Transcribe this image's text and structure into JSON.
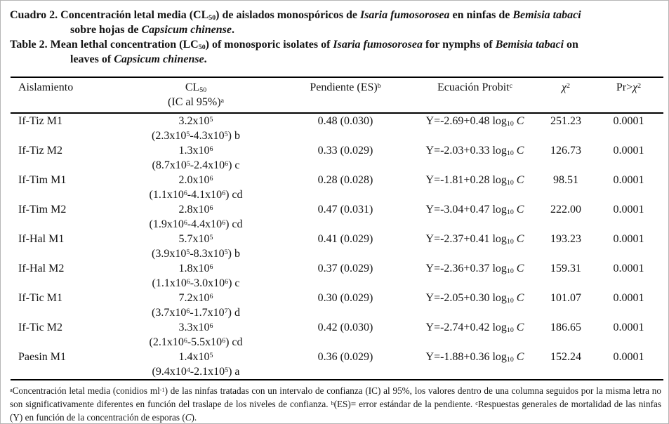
{
  "colors": {
    "text": "#141414",
    "rule": "#000000",
    "page_border": "#b5b5b5",
    "background": "#ffffff"
  },
  "caption": {
    "lines": [
      {
        "indent": false,
        "segments": [
          {
            "t": "Cuadro 2. Concentración letal media (CL"
          },
          {
            "sub": "50"
          },
          {
            "t": ") de aislados monospóricos de "
          },
          {
            "i": "Isaria fumosorosea"
          },
          {
            "t": " en ninfas de "
          },
          {
            "i": "Bemisia tabaci"
          }
        ]
      },
      {
        "indent": true,
        "segments": [
          {
            "t": "sobre hojas de "
          },
          {
            "i": "Capsicum chinense"
          },
          {
            "t": "."
          }
        ]
      },
      {
        "indent": false,
        "segments": [
          {
            "t": "Table 2. Mean lethal concentration (LC"
          },
          {
            "sub": "50"
          },
          {
            "t": ") of monosporic isolates of "
          },
          {
            "i": "Isaria fumosorosea"
          },
          {
            "t": " for nymphs of "
          },
          {
            "i": "Bemisia tabaci"
          },
          {
            "t": " on"
          }
        ]
      },
      {
        "indent": true,
        "segments": [
          {
            "t": "leaves of "
          },
          {
            "i": "Capsicum chinense"
          },
          {
            "t": "."
          }
        ]
      }
    ]
  },
  "table": {
    "header": {
      "aislamiento": "Aislamiento",
      "cl50_line1": [
        {
          "t": "CL"
        },
        {
          "sub": "50"
        }
      ],
      "cl50_line2": [
        {
          "t": "(IC al 95%)"
        },
        {
          "sup": "a"
        }
      ],
      "pendiente": [
        {
          "t": "Pendiente (ES)"
        },
        {
          "sup": "b"
        }
      ],
      "ecuacion": [
        {
          "t": "Ecuación Probit"
        },
        {
          "sup": "c"
        }
      ],
      "chi2": [
        {
          "i": "χ"
        },
        {
          "sup": "2"
        }
      ],
      "pr_chi2": [
        {
          "t": "Pr>"
        },
        {
          "i": "χ"
        },
        {
          "sup": "2"
        }
      ]
    },
    "rows": [
      {
        "isolate": "If-Tiz M1",
        "cl50": [
          {
            "t": "3.2x10"
          },
          {
            "sup": "5"
          }
        ],
        "ci": [
          {
            "t": "(2.3x10"
          },
          {
            "sup": "5"
          },
          {
            "t": "-4.3x10"
          },
          {
            "sup": "5"
          },
          {
            "t": ") b"
          }
        ],
        "slope": "0.48 (0.030)",
        "equation": [
          {
            "t": "Y=-2.69+0.48 log"
          },
          {
            "sub": "10"
          },
          {
            "t": " "
          },
          {
            "i": "C"
          }
        ],
        "chi2": "251.23",
        "pr": "0.0001"
      },
      {
        "isolate": "If-Tiz M2",
        "cl50": [
          {
            "t": "1.3x10"
          },
          {
            "sup": "6"
          }
        ],
        "ci": [
          {
            "t": "(8.7x10"
          },
          {
            "sup": "5"
          },
          {
            "t": "-2.4x10"
          },
          {
            "sup": "6"
          },
          {
            "t": ") c"
          }
        ],
        "slope": "0.33 (0.029)",
        "equation": [
          {
            "t": "Y=-2.03+0.33 log"
          },
          {
            "sub": "10"
          },
          {
            "t": " "
          },
          {
            "i": "C"
          }
        ],
        "chi2": "126.73",
        "pr": "0.0001"
      },
      {
        "isolate": "If-Tim M1",
        "cl50": [
          {
            "t": "2.0x10"
          },
          {
            "sup": "6"
          }
        ],
        "ci": [
          {
            "t": "(1.1x10"
          },
          {
            "sup": "6"
          },
          {
            "t": "-4.1x10"
          },
          {
            "sup": "6"
          },
          {
            "t": ") cd"
          }
        ],
        "slope": "0.28 (0.028)",
        "equation": [
          {
            "t": "Y=-1.81+0.28 log"
          },
          {
            "sub": "10"
          },
          {
            "t": " "
          },
          {
            "i": "C"
          }
        ],
        "chi2": "98.51",
        "pr": "0.0001"
      },
      {
        "isolate": "If-Tim M2",
        "cl50": [
          {
            "t": "2.8x10"
          },
          {
            "sup": "6"
          }
        ],
        "ci": [
          {
            "t": "(1.9x10"
          },
          {
            "sup": "6"
          },
          {
            "t": "-4.4x10"
          },
          {
            "sup": "6"
          },
          {
            "t": ") cd"
          }
        ],
        "slope": "0.47 (0.031)",
        "equation": [
          {
            "t": "Y=-3.04+0.47 log"
          },
          {
            "sub": "10"
          },
          {
            "t": " "
          },
          {
            "i": "C"
          }
        ],
        "chi2": "222.00",
        "pr": "0.0001"
      },
      {
        "isolate": "If-Hal M1",
        "cl50": [
          {
            "t": "5.7x10"
          },
          {
            "sup": "5"
          }
        ],
        "ci": [
          {
            "t": "(3.9x10"
          },
          {
            "sup": "5"
          },
          {
            "t": "-8.3x10"
          },
          {
            "sup": "5"
          },
          {
            "t": ") b"
          }
        ],
        "slope": "0.41 (0.029)",
        "equation": [
          {
            "t": "Y=-2.37+0.41 log"
          },
          {
            "sub": "10"
          },
          {
            "t": " "
          },
          {
            "i": "C"
          }
        ],
        "chi2": "193.23",
        "pr": "0.0001"
      },
      {
        "isolate": "If-Hal M2",
        "cl50": [
          {
            "t": "1.8x10"
          },
          {
            "sup": "6"
          }
        ],
        "ci": [
          {
            "t": "(1.1x10"
          },
          {
            "sup": "6"
          },
          {
            "t": "-3.0x10"
          },
          {
            "sup": "6"
          },
          {
            "t": ") c"
          }
        ],
        "slope": "0.37 (0.029)",
        "equation": [
          {
            "t": "Y=-2.36+0.37 log"
          },
          {
            "sub": "10"
          },
          {
            "t": " "
          },
          {
            "i": "C"
          }
        ],
        "chi2": "159.31",
        "pr": "0.0001"
      },
      {
        "isolate": "If-Tic M1",
        "cl50": [
          {
            "t": "7.2x10"
          },
          {
            "sup": "6"
          }
        ],
        "ci": [
          {
            "t": "(3.7x10"
          },
          {
            "sup": "6"
          },
          {
            "t": "-1.7x10"
          },
          {
            "sup": "7"
          },
          {
            "t": ") d"
          }
        ],
        "slope": "0.30 (0.029)",
        "equation": [
          {
            "t": "Y=-2.05+0.30 log"
          },
          {
            "sub": "10"
          },
          {
            "t": " "
          },
          {
            "i": "C"
          }
        ],
        "chi2": "101.07",
        "pr": "0.0001"
      },
      {
        "isolate": "If-Tic M2",
        "cl50": [
          {
            "t": "3.3x10"
          },
          {
            "sup": "6"
          }
        ],
        "ci": [
          {
            "t": "(2.1x10"
          },
          {
            "sup": "6"
          },
          {
            "t": "-5.5x10"
          },
          {
            "sup": "6"
          },
          {
            "t": ") cd"
          }
        ],
        "slope": "0.42 (0.030)",
        "equation": [
          {
            "t": "Y=-2.74+0.42 log"
          },
          {
            "sub": "10"
          },
          {
            "t": " "
          },
          {
            "i": "C"
          }
        ],
        "chi2": "186.65",
        "pr": "0.0001"
      },
      {
        "isolate": "Paesin M1",
        "cl50": [
          {
            "t": "1.4x10"
          },
          {
            "sup": "5"
          }
        ],
        "ci": [
          {
            "t": "(9.4x10"
          },
          {
            "sup": "4"
          },
          {
            "t": "-2.1x10"
          },
          {
            "sup": "5"
          },
          {
            "t": ") a"
          }
        ],
        "slope": "0.36 (0.029)",
        "equation": [
          {
            "t": "Y=-1.88+0.36 log"
          },
          {
            "sub": "10"
          },
          {
            "t": " "
          },
          {
            "i": "C"
          }
        ],
        "chi2": "152.24",
        "pr": "0.0001"
      }
    ]
  },
  "footnote": {
    "segments": [
      {
        "sup": "a"
      },
      {
        "t": "Concentración letal media (conidios ml"
      },
      {
        "sup": "-1"
      },
      {
        "t": ") de las ninfas tratadas con un intervalo de confianza (IC) al 95%, los valores dentro de una columna seguidos por la misma letra no son significativamente diferentes en función del traslape de los niveles de confianza. "
      },
      {
        "sup": "b"
      },
      {
        "t": "(ES)= error estándar de la pendiente. "
      },
      {
        "sup": "c"
      },
      {
        "t": "Respuestas generales de mortalidad de las ninfas (Y) en función de la concentración de esporas ("
      },
      {
        "i": "C"
      },
      {
        "t": ")."
      }
    ]
  }
}
